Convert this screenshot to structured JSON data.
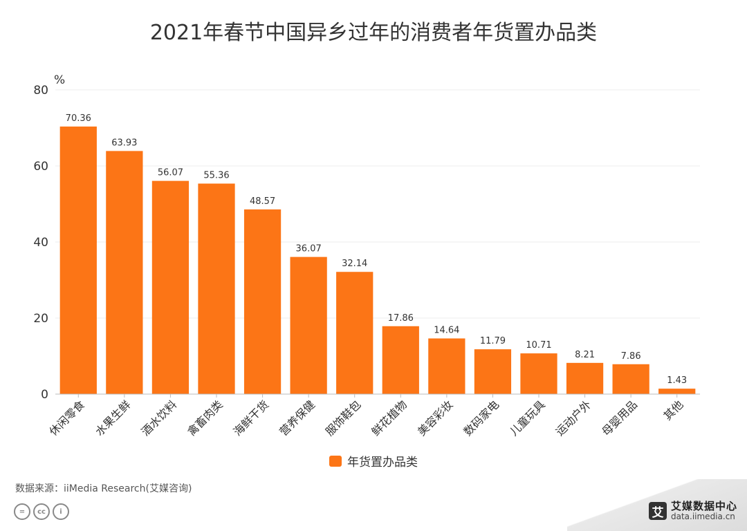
{
  "chart_data": {
    "type": "bar",
    "title": "2021年春节中国异乡过年的消费者年货置办品类",
    "ylabel": "%",
    "xlabel": "",
    "ylim": [
      0,
      80
    ],
    "yticks": [
      "0",
      "20",
      "40",
      "60",
      "80"
    ],
    "grid": true,
    "legend_position": "bottom",
    "categories": [
      "休闲零食",
      "水果生鲜",
      "酒水饮料",
      "禽畜肉类",
      "海鲜干货",
      "营养保健",
      "服饰鞋包",
      "鲜花植物",
      "美容彩妆",
      "数码家电",
      "儿童玩具",
      "运动户外",
      "母婴用品",
      "其他"
    ],
    "series": [
      {
        "name": "年货置办品类",
        "color": "#fc7516",
        "values": [
          70.36,
          63.93,
          56.07,
          55.36,
          48.57,
          36.07,
          32.14,
          17.86,
          14.64,
          11.79,
          10.71,
          8.21,
          7.86,
          1.43
        ],
        "labels": [
          "70.36",
          "63.93",
          "56.07",
          "55.36",
          "48.57",
          "36.07",
          "32.14",
          "17.86",
          "14.64",
          "11.79",
          "10.71",
          "8.21",
          "7.86",
          "1.43"
        ]
      }
    ]
  },
  "footer": {
    "source": "数据来源：iiMedia Research(艾媒咨询)",
    "brand_name": "艾媒数据中心",
    "brand_url": "data.iimedia.cn",
    "brand_logo_char": "艾"
  },
  "icons": {
    "license": [
      "equals-icon",
      "cc-icon",
      "person-icon"
    ],
    "license_chars": [
      "=",
      "cc",
      "i"
    ]
  }
}
